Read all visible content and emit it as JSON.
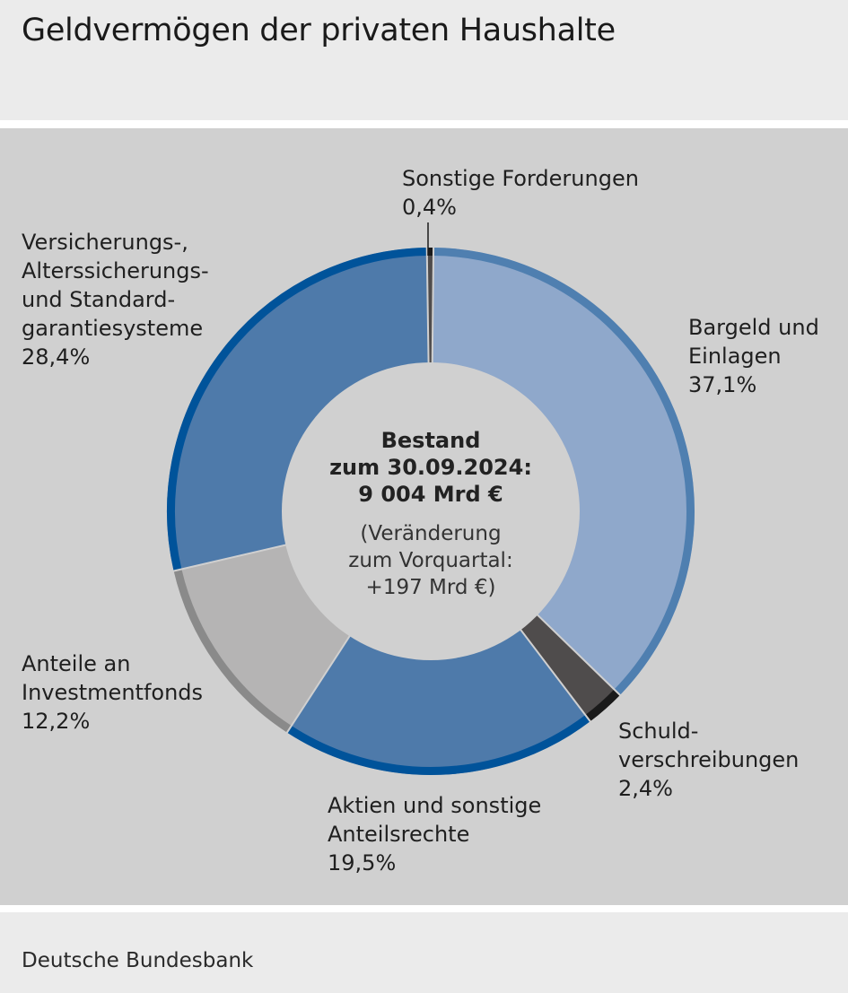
{
  "header": {
    "title": "Geldvermögen der privaten Haushalte"
  },
  "footer": {
    "source": "Deutsche Bundesbank"
  },
  "chart_data": {
    "type": "pie",
    "title": "Geldvermögen der privaten Haushalte",
    "center": {
      "line1": "Bestand",
      "line2": "zum 30.09.2024:",
      "line3": "9 004 Mrd €",
      "note1": "(Veränderung",
      "note2": "zum Vorquartal:",
      "note3": "+197 Mrd €)"
    },
    "slices": [
      {
        "label": "Bargeld und\nEinlagen",
        "value": 37.1,
        "value_label": "37,1%",
        "color": "#8fa8cb",
        "ring_color": "#4f7fb0"
      },
      {
        "label": "Schuld-\nverschreibungen",
        "value": 2.4,
        "value_label": "2,4%",
        "color": "#4f4c4c",
        "ring_color": "#1a1a1a"
      },
      {
        "label": "Aktien und sonstige\nAnteilsrechte",
        "value": 19.5,
        "value_label": "19,5%",
        "color": "#4e7aaa",
        "ring_color": "#00539a"
      },
      {
        "label": "Anteile an\nInvestmentfonds",
        "value": 12.2,
        "value_label": "12,2%",
        "color": "#b5b4b4",
        "ring_color": "#8a8a8a"
      },
      {
        "label": "Versicherungs-,\nAlterssicherungs-\nund Standard-\ngarantiesysteme",
        "value": 28.4,
        "value_label": "28,4%",
        "color": "#4e7aaa",
        "ring_color": "#00539a"
      },
      {
        "label": "Sonstige Forderungen",
        "value": 0.4,
        "value_label": "0,4%",
        "color": "#4f4c4c",
        "ring_color": "#1a1a1a"
      }
    ]
  }
}
